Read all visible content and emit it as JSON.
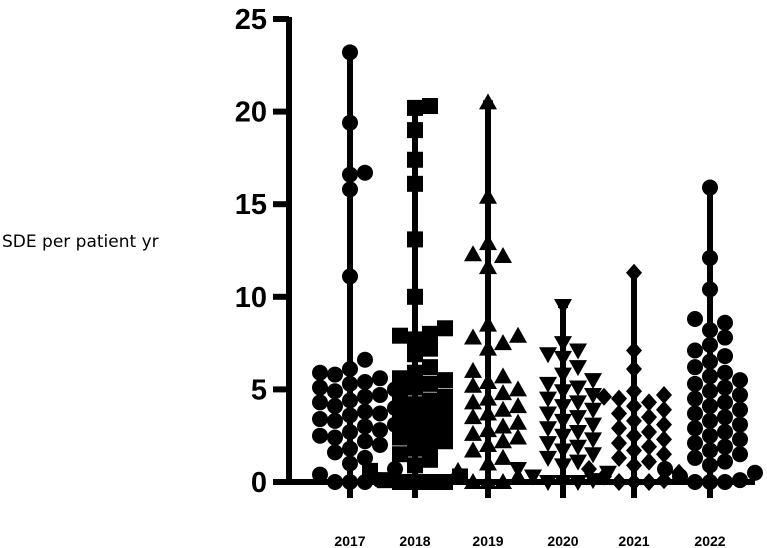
{
  "chart_data": {
    "type": "scatter",
    "ylabel": "SDE per patient yr",
    "ylim": [
      0,
      25
    ],
    "yticks": [
      0,
      5,
      10,
      15,
      20,
      25
    ],
    "categories": [
      "2017",
      "2018",
      "2019",
      "2020",
      "2021",
      "2022"
    ],
    "grid": false,
    "series": [
      {
        "marker": "circle",
        "min": 0,
        "max": 23.2,
        "values": [
          23.2,
          19.4,
          16.6,
          16.7,
          15.8,
          11.1,
          6.6,
          6.1,
          5.9,
          5.8,
          5.6,
          5.4,
          5.3,
          5.1,
          5.0,
          4.9,
          4.7,
          4.6,
          4.4,
          4.3,
          4.1,
          4.0,
          3.8,
          3.7,
          3.6,
          3.4,
          3.3,
          3.1,
          3.0,
          2.8,
          2.7,
          2.5,
          2.4,
          2.2,
          2.0,
          1.8,
          1.6,
          1.3,
          1.0,
          0.7,
          0.4,
          0.1,
          0.0,
          0.0,
          0.0
        ]
      },
      {
        "marker": "square",
        "min": 0,
        "max": 20.3,
        "values": [
          20.3,
          20.2,
          19.0,
          17.4,
          16.1,
          13.1,
          10.0,
          8.3,
          8.0,
          7.9,
          7.7,
          7.2,
          6.9,
          6.2,
          5.9,
          5.6,
          5.5,
          5.3,
          5.1,
          4.8,
          4.6,
          4.4,
          4.2,
          4.0,
          3.8,
          3.6,
          3.4,
          3.2,
          3.0,
          2.8,
          2.6,
          2.4,
          2.2,
          2.0,
          1.8,
          1.5,
          1.2,
          0.9,
          0.6,
          0.3,
          0.1,
          0.0,
          0.0,
          0.0,
          0.0
        ]
      },
      {
        "marker": "triangle-up",
        "min": 0,
        "max": 20.5,
        "values": [
          20.5,
          15.4,
          12.9,
          12.3,
          12.2,
          11.6,
          8.5,
          7.9,
          7.8,
          7.5,
          7.2,
          6.0,
          5.7,
          5.4,
          5.2,
          5.0,
          4.8,
          4.5,
          4.3,
          4.1,
          3.9,
          3.7,
          3.5,
          3.2,
          3.0,
          2.8,
          2.6,
          2.4,
          2.2,
          2.0,
          1.7,
          1.3,
          1.0,
          0.6,
          0.3,
          0.0,
          0.0,
          0.0
        ]
      },
      {
        "marker": "triangle-down",
        "min": 0,
        "max": 9.5,
        "values": [
          9.5,
          7.5,
          7.1,
          6.9,
          6.7,
          6.2,
          5.8,
          5.5,
          5.3,
          5.1,
          4.9,
          4.7,
          4.5,
          4.3,
          4.1,
          3.9,
          3.7,
          3.5,
          3.3,
          3.1,
          2.9,
          2.7,
          2.5,
          2.3,
          2.1,
          1.9,
          1.7,
          1.5,
          1.3,
          1.1,
          0.9,
          0.7,
          0.5,
          0.3,
          0.1,
          0.0,
          0.0,
          0.0
        ]
      },
      {
        "marker": "diamond",
        "min": 0,
        "max": 11.3,
        "values": [
          11.3,
          7.1,
          6.1,
          4.9,
          4.7,
          4.6,
          4.5,
          4.3,
          4.1,
          3.9,
          3.7,
          3.5,
          3.3,
          3.1,
          2.9,
          2.7,
          2.5,
          2.3,
          2.1,
          1.9,
          1.7,
          1.5,
          1.3,
          1.1,
          0.9,
          0.7,
          0.5,
          0.3,
          0.1,
          0.0,
          0.0,
          0.0
        ]
      },
      {
        "marker": "circle",
        "min": 0,
        "max": 15.9,
        "values": [
          15.9,
          12.1,
          10.4,
          8.8,
          8.6,
          8.2,
          7.8,
          7.4,
          7.1,
          6.8,
          6.5,
          6.2,
          5.9,
          5.7,
          5.5,
          5.3,
          5.1,
          4.9,
          4.7,
          4.5,
          4.3,
          4.1,
          3.9,
          3.7,
          3.5,
          3.3,
          3.1,
          2.9,
          2.7,
          2.5,
          2.3,
          2.1,
          1.9,
          1.7,
          1.5,
          1.3,
          1.1,
          0.9,
          0.7,
          0.5,
          0.3,
          0.1,
          0.0,
          0.0,
          0.0
        ]
      }
    ]
  }
}
